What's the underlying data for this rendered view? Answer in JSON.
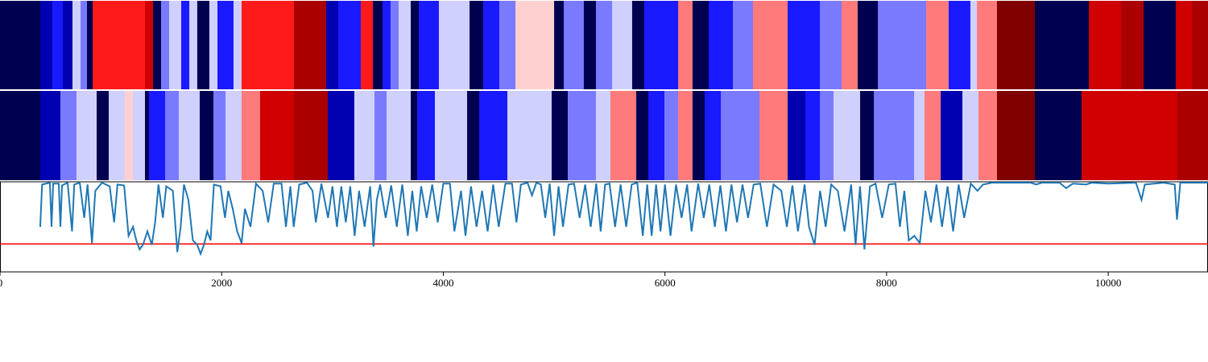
{
  "chart_data": {
    "type": "line",
    "xlim": [
      0,
      10900
    ],
    "xticks": [
      0,
      2000,
      4000,
      6000,
      8000,
      10000
    ],
    "ylim": [
      0,
      1
    ],
    "bands": [
      {
        "breaks": [
          0,
          363,
          472,
          567,
          654,
          727,
          785,
          836,
          1308,
          1381,
          1453,
          1526,
          1635,
          1708,
          1780,
          1889,
          1962,
          2107,
          2180,
          2652,
          2943,
          3052,
          3256,
          3365,
          3452,
          3524,
          3597,
          3706,
          3779,
          3960,
          4237,
          4360,
          4505,
          4651,
          5000,
          5087,
          5268,
          5377,
          5523,
          5704,
          5813,
          6119,
          6249,
          6395,
          6613,
          6794,
          7107,
          7398,
          7594,
          7739,
          7921,
          8357,
          8560,
          8756,
          8815,
          8996,
          9338,
          9825,
          10115,
          10319,
          10610,
          10755,
          10900
        ],
        "colors": [
          "#000050",
          "#0000b0",
          "#1a1aff",
          "#0000b0",
          "#d0d0ff",
          "#7a7aff",
          "#000050",
          "#ff1a1a",
          "#d00000",
          "#000050",
          "#7a7aff",
          "#d0d0ff",
          "#1a1aff",
          "#d0d0ff",
          "#000050",
          "#d0d0ff",
          "#1a1aff",
          "#d0d0ff",
          "#ff1a1a",
          "#aa0000",
          "#0000b0",
          "#1a1aff",
          "#ff1a1a",
          "#000050",
          "#1a1aff",
          "#7a7aff",
          "#d0d0ff",
          "#000050",
          "#1a1aff",
          "#d0d0ff",
          "#000050",
          "#1a1aff",
          "#7a7aff",
          "#ffd0d0",
          "#000050",
          "#7a7aff",
          "#000050",
          "#7a7aff",
          "#d0d0ff",
          "#000050",
          "#1a1aff",
          "#ff7a7a",
          "#000050",
          "#1a1aff",
          "#7a7aff",
          "#ff7a7a",
          "#1a1aff",
          "#7a7aff",
          "#ff7a7a",
          "#000050",
          "#7a7aff",
          "#ff7a7a",
          "#1a1aff",
          "#d0d0ff",
          "#ff7a7a",
          "#800000",
          "#000050",
          "#d00000",
          "#aa0000",
          "#000050",
          "#d00000",
          "#aa0000"
        ]
      },
      {
        "breaks": [
          0,
          363,
          545,
          690,
          872,
          981,
          1126,
          1199,
          1308,
          1344,
          1490,
          1613,
          1802,
          1926,
          2035,
          2180,
          2347,
          2652,
          2958,
          3197,
          3379,
          3488,
          3706,
          3764,
          3924,
          4215,
          4324,
          4578,
          4978,
          5123,
          5377,
          5508,
          5741,
          5850,
          5995,
          6119,
          6249,
          6358,
          6504,
          6853,
          7107,
          7267,
          7398,
          7521,
          7761,
          7885,
          8248,
          8342,
          8488,
          8684,
          8829,
          8996,
          9338,
          9759,
          10624,
          10900
        ],
        "colors": [
          "#000050",
          "#0000b0",
          "#7a7aff",
          "#d0d0ff",
          "#000050",
          "#d0d0ff",
          "#ffd0d0",
          "#d0d0ff",
          "#000050",
          "#1a1aff",
          "#7a7aff",
          "#d0d0ff",
          "#000050",
          "#7a7aff",
          "#d0d0ff",
          "#ff7a7a",
          "#d00000",
          "#aa0000",
          "#0000b0",
          "#d0d0ff",
          "#7a7aff",
          "#d0d0ff",
          "#000050",
          "#1a1aff",
          "#d0d0ff",
          "#000050",
          "#1a1aff",
          "#d0d0ff",
          "#000050",
          "#7a7aff",
          "#d0d0ff",
          "#ff7a7a",
          "#000050",
          "#1a1aff",
          "#7a7aff",
          "#ff7a7a",
          "#000050",
          "#1a1aff",
          "#7a7aff",
          "#ff7a7a",
          "#0000b0",
          "#1a1aff",
          "#7a7aff",
          "#d0d0ff",
          "#000050",
          "#7a7aff",
          "#d0d0ff",
          "#ff7a7a",
          "#0000b0",
          "#d0d0ff",
          "#ff7a7a",
          "#800000",
          "#000050",
          "#d00000",
          "#aa0000"
        ]
      }
    ],
    "threshold": 0.31,
    "threshold_color": "#ff0000",
    "series": [
      {
        "color": "#1f77b4",
        "x": [
          363,
          380,
          450,
          465,
          480,
          530,
          545,
          560,
          610,
          650,
          670,
          720,
          760,
          790,
          830,
          860,
          920,
          990,
          1030,
          1060,
          1120,
          1160,
          1200,
          1230,
          1260,
          1290,
          1330,
          1370,
          1400,
          1430,
          1470,
          1500,
          1560,
          1600,
          1630,
          1660,
          1700,
          1740,
          1780,
          1810,
          1840,
          1870,
          1900,
          1930,
          1990,
          2030,
          2060,
          2100,
          2140,
          2180,
          2210,
          2260,
          2310,
          2370,
          2420,
          2470,
          2540,
          2580,
          2620,
          2650,
          2700,
          2770,
          2820,
          2850,
          2900,
          2960,
          3000,
          3040,
          3080,
          3120,
          3160,
          3200,
          3240,
          3290,
          3340,
          3370,
          3400,
          3430,
          3480,
          3530,
          3580,
          3630,
          3680,
          3720,
          3760,
          3800,
          3850,
          3900,
          3950,
          4000,
          4060,
          4100,
          4160,
          4200,
          4250,
          4300,
          4350,
          4400,
          4450,
          4500,
          4560,
          4620,
          4660,
          4700,
          4760,
          4800,
          4840,
          4880,
          4920,
          4960,
          5000,
          5040,
          5080,
          5130,
          5180,
          5230,
          5280,
          5330,
          5380,
          5420,
          5460,
          5500,
          5550,
          5600,
          5650,
          5700,
          5750,
          5800,
          5840,
          5880,
          5920,
          5960,
          6000,
          6050,
          6100,
          6150,
          6200,
          6240,
          6300,
          6350,
          6400,
          6450,
          6500,
          6550,
          6600,
          6650,
          6700,
          6750,
          6800,
          6860,
          6920,
          6980,
          7050,
          7100,
          7150,
          7200,
          7260,
          7300,
          7350,
          7400,
          7450,
          7500,
          7560,
          7620,
          7680,
          7720,
          7760,
          7800,
          7850,
          7900,
          7960,
          8020,
          8080,
          8120,
          8160,
          8200,
          8250,
          8300,
          8350,
          8400,
          8450,
          8500,
          8550,
          8600,
          8650,
          8700,
          8760,
          8820,
          8870,
          8950,
          9000,
          9100,
          9300,
          9350,
          9400,
          9560,
          9620,
          9680,
          9800,
          9850,
          10000,
          10250,
          10300,
          10330,
          10500,
          10600,
          10620,
          10650,
          10900
        ],
        "values": [
          0.5,
          0.97,
          0.99,
          0.5,
          0.98,
          0.98,
          0.5,
          0.96,
          0.99,
          0.45,
          0.97,
          0.99,
          0.6,
          0.97,
          0.32,
          0.9,
          0.99,
          0.95,
          0.55,
          0.97,
          0.96,
          0.4,
          0.5,
          0.35,
          0.25,
          0.3,
          0.45,
          0.3,
          0.55,
          0.97,
          0.6,
          0.95,
          0.9,
          0.22,
          0.5,
          0.97,
          0.8,
          0.35,
          0.3,
          0.2,
          0.3,
          0.45,
          0.35,
          0.97,
          0.95,
          0.6,
          0.9,
          0.7,
          0.45,
          0.32,
          0.7,
          0.5,
          0.98,
          0.9,
          0.55,
          0.98,
          0.98,
          0.5,
          0.95,
          0.5,
          0.97,
          0.99,
          0.9,
          0.55,
          0.98,
          0.6,
          0.95,
          0.5,
          0.95,
          0.55,
          0.95,
          0.4,
          0.9,
          0.5,
          0.95,
          0.28,
          0.8,
          0.97,
          0.6,
          0.96,
          0.5,
          0.97,
          0.4,
          0.9,
          0.45,
          0.95,
          0.6,
          0.97,
          0.55,
          0.98,
          0.98,
          0.45,
          0.9,
          0.4,
          0.95,
          0.5,
          0.9,
          0.45,
          0.97,
          0.5,
          0.98,
          0.98,
          0.55,
          0.97,
          0.99,
          0.85,
          0.99,
          0.97,
          0.6,
          0.98,
          0.4,
          0.95,
          0.5,
          0.97,
          0.98,
          0.6,
          0.97,
          0.5,
          0.98,
          0.45,
          0.97,
          0.98,
          0.5,
          0.97,
          0.5,
          0.97,
          0.99,
          0.4,
          0.97,
          0.4,
          0.97,
          0.45,
          0.97,
          0.4,
          0.97,
          0.6,
          0.97,
          0.45,
          0.98,
          0.6,
          0.97,
          0.5,
          0.96,
          0.45,
          0.97,
          0.55,
          0.97,
          0.6,
          0.97,
          0.98,
          0.5,
          0.97,
          0.9,
          0.5,
          0.96,
          0.45,
          0.97,
          0.5,
          0.3,
          0.9,
          0.5,
          0.97,
          0.9,
          0.45,
          0.97,
          0.3,
          0.95,
          0.25,
          0.95,
          0.98,
          0.6,
          0.97,
          0.98,
          0.5,
          0.9,
          0.35,
          0.4,
          0.32,
          0.9,
          0.55,
          0.97,
          0.5,
          0.95,
          0.45,
          0.97,
          0.6,
          0.98,
          0.9,
          0.97,
          0.99,
          0.99,
          0.99,
          0.99,
          0.97,
          0.99,
          0.99,
          0.93,
          0.98,
          0.97,
          0.99,
          0.98,
          0.99,
          0.8,
          0.97,
          0.99,
          0.97,
          0.58,
          0.99,
          0.99
        ]
      }
    ]
  }
}
